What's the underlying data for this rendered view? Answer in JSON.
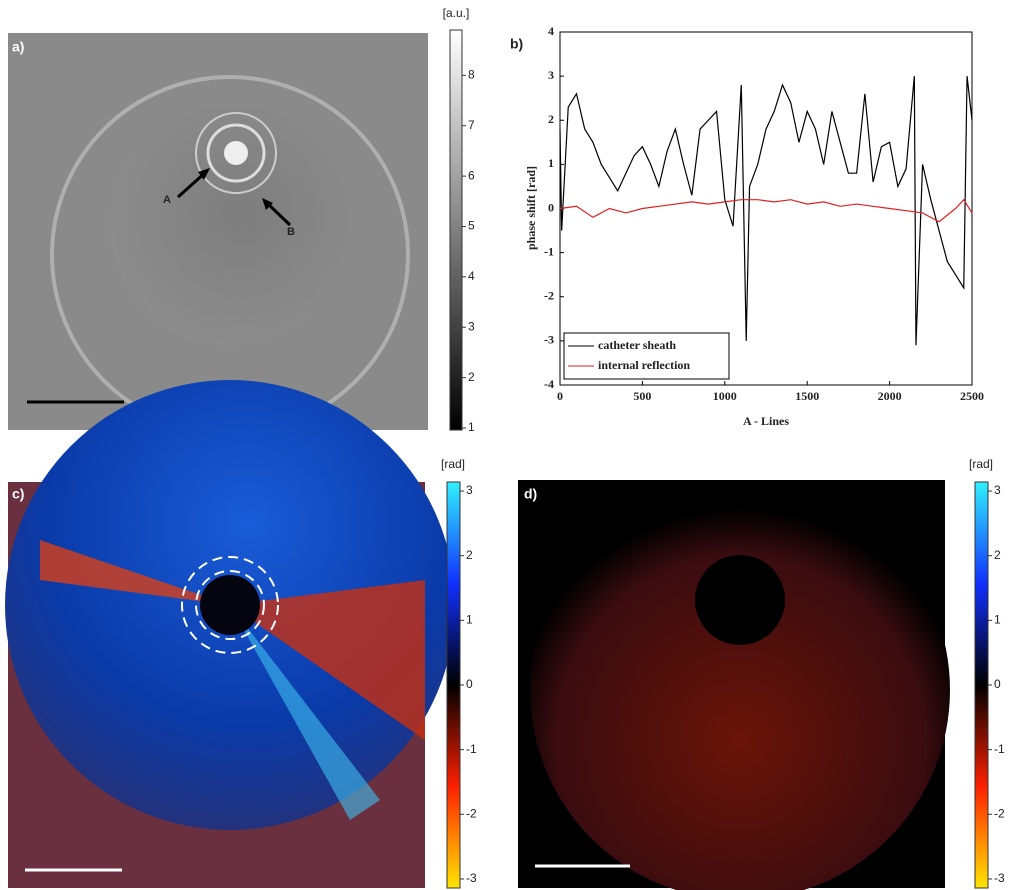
{
  "panels": [
    {
      "label": "a)",
      "unit": "[a.u.]",
      "clim": [
        0.96,
        8.9
      ],
      "ticks": [
        1,
        2,
        3,
        4,
        5,
        6,
        7,
        8
      ],
      "annotations": [
        "A",
        "B"
      ]
    },
    {
      "label": "c)",
      "unit": "[rad]",
      "clim": [
        -3.14,
        3.14
      ],
      "ticks": [
        -3,
        -2,
        -1,
        0,
        1,
        2,
        3
      ]
    },
    {
      "label": "d)",
      "unit": "[rad]",
      "clim": [
        -3.14,
        3.14
      ],
      "ticks": [
        -3,
        -2,
        -1,
        0,
        1,
        2,
        3
      ]
    }
  ],
  "chart_data": {
    "type": "line",
    "label": "b)",
    "x_label": "A - Lines",
    "y_label": "phase shift [rad]",
    "xlim": [
      0,
      2500
    ],
    "ylim": [
      -4,
      4
    ],
    "xticks": [
      0,
      500,
      1000,
      1500,
      2000,
      2500
    ],
    "yticks": [
      -4,
      -3,
      -2,
      -1,
      0,
      1,
      2,
      3,
      4
    ],
    "legend": "lower left",
    "series": [
      {
        "name": "catheter sheath",
        "color": "#000000",
        "x": [
          0,
          10,
          50,
          100,
          150,
          200,
          250,
          300,
          350,
          400,
          450,
          500,
          550,
          600,
          650,
          700,
          750,
          800,
          850,
          900,
          950,
          1000,
          1050,
          1100,
          1130,
          1150,
          1200,
          1250,
          1300,
          1350,
          1400,
          1450,
          1500,
          1550,
          1600,
          1650,
          1700,
          1750,
          1800,
          1850,
          1900,
          1950,
          2000,
          2050,
          2100,
          2150,
          2160,
          2200,
          2250,
          2300,
          2350,
          2400,
          2450,
          2470,
          2500
        ],
        "values": [
          1.8,
          -0.5,
          2.3,
          2.6,
          1.8,
          1.5,
          1.0,
          0.7,
          0.4,
          0.8,
          1.2,
          1.4,
          1.0,
          0.5,
          1.3,
          1.8,
          1.0,
          0.3,
          1.8,
          2.0,
          2.2,
          0.2,
          -0.4,
          2.8,
          -3.0,
          0.5,
          1.0,
          1.8,
          2.2,
          2.8,
          2.4,
          1.5,
          2.2,
          1.8,
          1.0,
          2.2,
          1.5,
          0.8,
          0.8,
          2.6,
          0.6,
          1.4,
          1.5,
          0.5,
          0.9,
          3.0,
          -3.1,
          1.0,
          0.2,
          -0.5,
          -1.2,
          -1.5,
          -1.8,
          3.0,
          2.0
        ]
      },
      {
        "name": "internal reflection",
        "color": "#e02020",
        "x": [
          0,
          100,
          200,
          300,
          400,
          500,
          600,
          700,
          800,
          900,
          1000,
          1100,
          1200,
          1300,
          1400,
          1500,
          1600,
          1700,
          1800,
          1900,
          2000,
          2100,
          2200,
          2300,
          2400,
          2450,
          2500
        ],
        "values": [
          0.0,
          0.05,
          -0.2,
          0.0,
          -0.1,
          0.0,
          0.05,
          0.1,
          0.15,
          0.1,
          0.15,
          0.2,
          0.2,
          0.15,
          0.2,
          0.1,
          0.15,
          0.05,
          0.1,
          0.05,
          0.0,
          -0.05,
          -0.1,
          -0.3,
          0.0,
          0.2,
          -0.1
        ]
      }
    ]
  }
}
